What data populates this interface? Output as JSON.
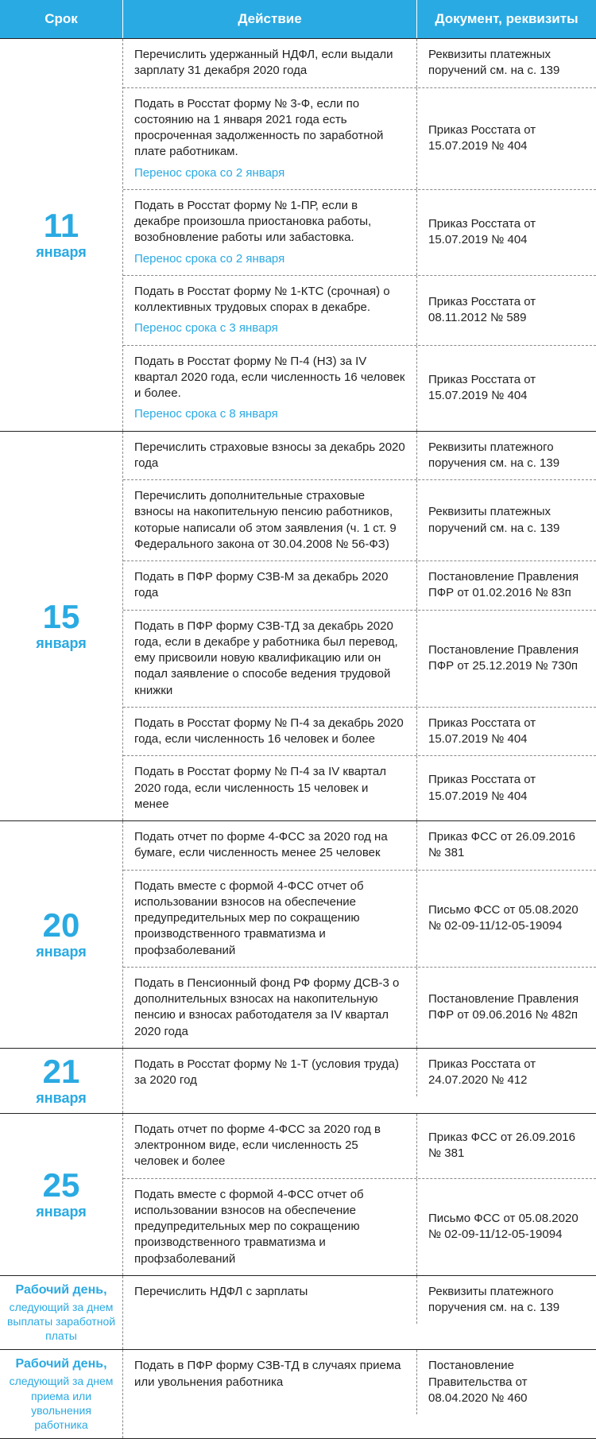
{
  "colors": {
    "accent": "#2aaae2",
    "text": "#222222",
    "dash": "#888888",
    "bg": "#ffffff"
  },
  "header": {
    "date": "Срок",
    "action": "Действие",
    "doc": "Документ, реквизиты"
  },
  "groups": [
    {
      "date_num": "11",
      "date_month": "января",
      "rows": [
        {
          "action": "Перечислить удержанный НДФЛ, если выдали зарплату 31 декабря 2020 года",
          "doc": "Реквизиты платежных поручений см. на с. 139"
        },
        {
          "action": "Подать в Росстат форму № 3-Ф, если по состоянию на 1 января 2021 года есть просроченная задолженность по заработной плате работникам.",
          "note": "Перенос срока со 2 января",
          "doc": "Приказ Росстата от 15.07.2019 № 404"
        },
        {
          "action": "Подать в Росстат форму № 1-ПР, если в декабре произошла приостановка работы, возобновление работы или забастовка.",
          "note": "Перенос срока со 2 января",
          "doc": "Приказ Росстата от 15.07.2019 № 404"
        },
        {
          "action": "Подать в Росстат форму № 1-КТС (срочная) о коллективных трудовых спорах в декабре.",
          "note": "Перенос срока с 3 января",
          "doc": "Приказ Росстата от 08.11.2012 № 589"
        },
        {
          "action": "Подать в Росстат форму № П-4 (НЗ) за IV квартал 2020 года, если численность 16 человек и более.",
          "note": "Перенос срока с 8 января",
          "doc": "Приказ Росстата от 15.07.2019 № 404"
        }
      ]
    },
    {
      "date_num": "15",
      "date_month": "января",
      "rows": [
        {
          "action": "Перечислить страховые взносы за декабрь 2020 года",
          "doc": "Реквизиты платежного поручения см. на с. 139"
        },
        {
          "action": "Перечислить дополнительные страховые взносы на накопительную пенсию работников, которые написали об этом заявления (ч. 1 ст. 9 Федерального закона от 30.04.2008 № 56-ФЗ)",
          "doc": "Реквизиты платежных поручений см. на с. 139"
        },
        {
          "action": "Подать в ПФР форму СЗВ-М за декабрь 2020 года",
          "doc": "Постановление Правления ПФР от 01.02.2016 № 83п"
        },
        {
          "action": "Подать в ПФР форму СЗВ-ТД за декабрь 2020 года, если в декабре у работника был перевод, ему присвоили новую квалификацию или он подал заявление о способе ведения трудовой книжки",
          "doc": "Постановление Правления ПФР от 25.12.2019 № 730п"
        },
        {
          "action": "Подать в Росстат форму № П-4 за декабрь 2020 года, если численность 16 человек и более",
          "doc": "Приказ Росстата от 15.07.2019 № 404"
        },
        {
          "action": "Подать в Росстат форму № П-4 за IV квартал 2020 года, если численность 15 человек и менее",
          "doc": "Приказ Росстата от 15.07.2019 № 404"
        }
      ]
    },
    {
      "date_num": "20",
      "date_month": "января",
      "rows": [
        {
          "action": "Подать отчет по форме 4-ФСС за 2020 год на бумаге, если численность менее 25 человек",
          "doc": "Приказ ФСС от 26.09.2016 № 381"
        },
        {
          "action": "Подать вместе с формой 4-ФСС отчет об использовании взносов на обеспечение предупредительных мер по сокращению производственного травматизма и профзаболеваний",
          "doc": "Письмо ФСС от 05.08.2020 № 02-09-11/12-05-19094"
        },
        {
          "action": "Подать в Пенсионный фонд РФ форму ДСВ-3 о дополнительных взносах на накопительную пенсию и взносах работодателя за IV квартал 2020 года",
          "doc": "Постановление Правления ПФР от 09.06.2016 № 482п"
        }
      ]
    },
    {
      "date_num": "21",
      "date_month": "января",
      "rows": [
        {
          "action": "Подать в Росстат форму № 1-Т (условия труда) за 2020 год",
          "doc": "Приказ Росстата от 24.07.2020 № 412"
        }
      ]
    },
    {
      "date_num": "25",
      "date_month": "января",
      "rows": [
        {
          "action": "Подать отчет по форме 4-ФСС за 2020 год в электронном виде, если численность 25 человек и более",
          "doc": "Приказ ФСС от 26.09.2016 № 381"
        },
        {
          "action": "Подать вместе с формой 4-ФСС отчет об использовании взносов на обеспечение предупредительных мер по сокращению производственного травматизма и профзаболеваний",
          "doc": "Письмо ФСС от 05.08.2020 № 02-09-11/12-05-19094"
        }
      ]
    },
    {
      "date_text": "Рабочий день,",
      "date_sub": "следующий за днем выплаты заработной платы",
      "rows": [
        {
          "action": "Перечислить НДФЛ с зарплаты",
          "doc": "Реквизиты платежного поручения см. на с. 139"
        }
      ]
    },
    {
      "date_text": "Рабочий день,",
      "date_sub": "следующий за днем приема или увольнения работника",
      "rows": [
        {
          "action": "Подать в ПФР форму СЗВ-ТД в случаях приема или увольнения работника",
          "doc": "Постановление Правительства от 08.04.2020 № 460"
        }
      ]
    }
  ]
}
